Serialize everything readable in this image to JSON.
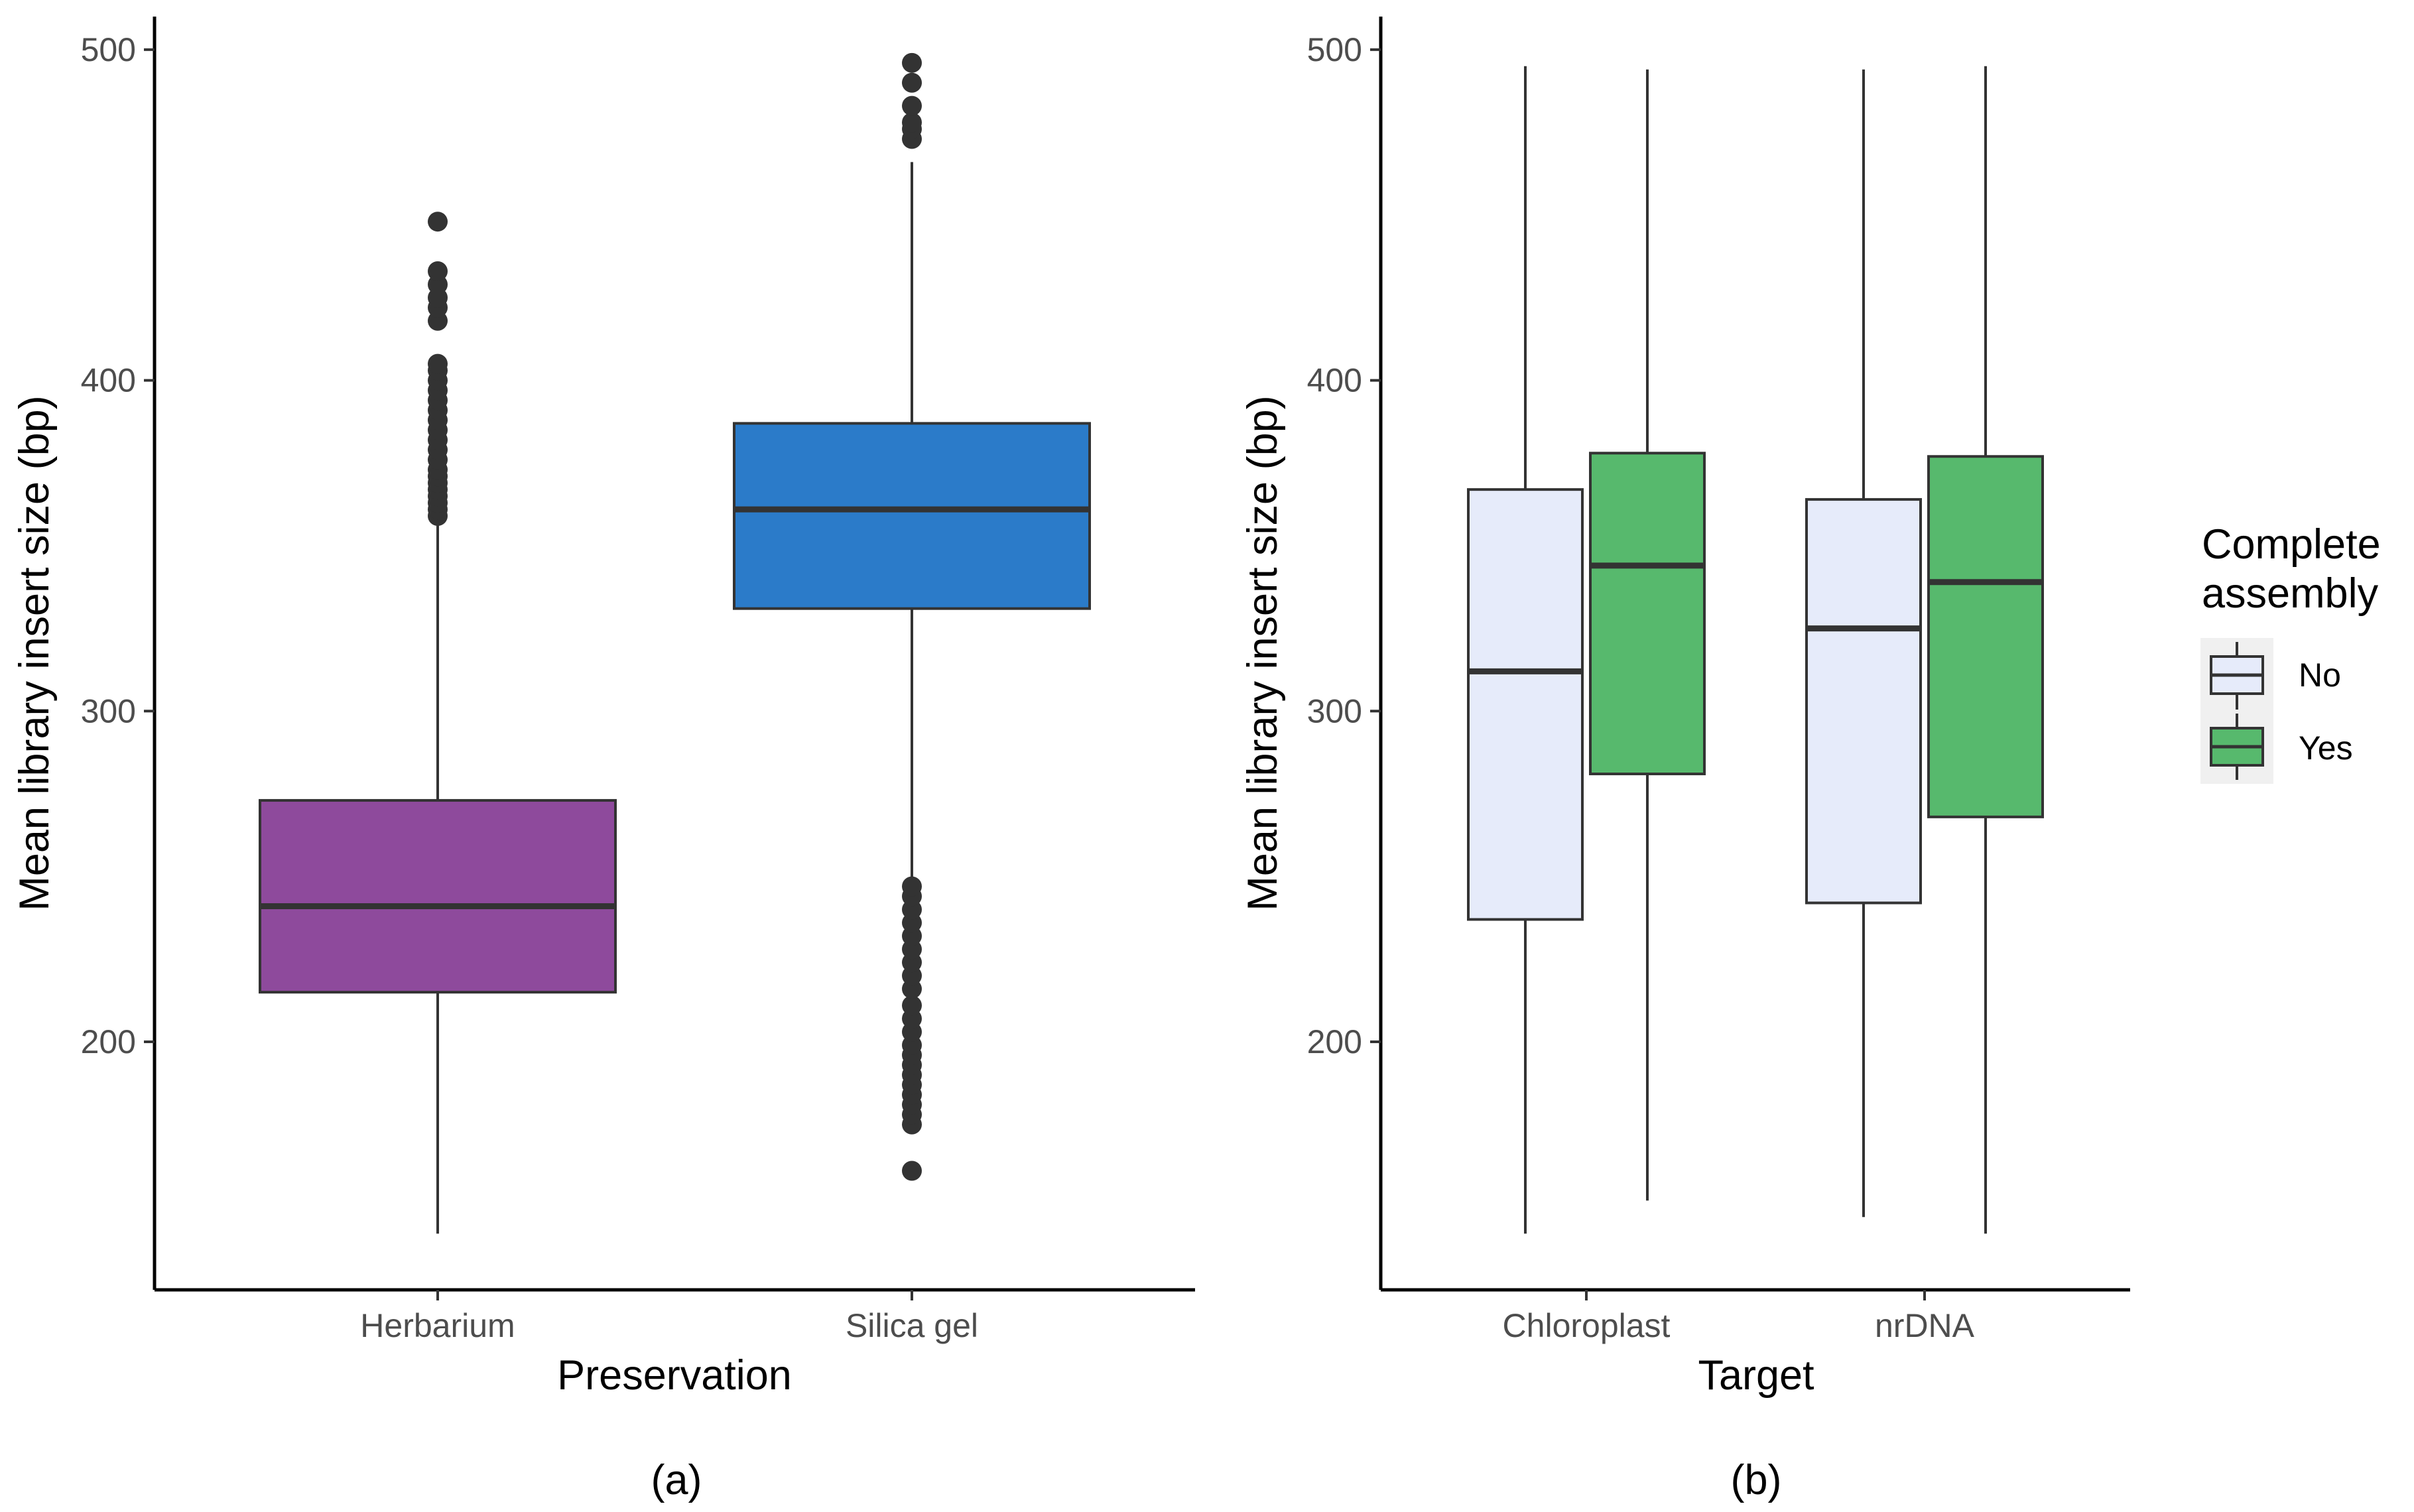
{
  "chart_data": [
    {
      "type": "boxplot",
      "panel_label": "(a)",
      "xlabel": "Preservation",
      "ylabel": "Mean library insert size (bp)",
      "ylim": [
        125,
        510
      ],
      "yticks": [
        200,
        300,
        400,
        500
      ],
      "ytick_labels": [
        "200",
        "300",
        "400",
        "500"
      ],
      "categories": [
        "Herbarium",
        "Silica gel"
      ],
      "colors": [
        "#8e4a9c",
        "#2b7bc9"
      ],
      "boxes": [
        {
          "category": "Herbarium",
          "whisker_low": 142,
          "q1": 215,
          "median": 241,
          "q3": 273,
          "whisker_high": 357,
          "outliers": [
            359,
            361,
            363,
            365,
            367,
            369,
            371,
            373,
            376,
            379,
            382,
            385,
            388,
            391,
            394,
            397,
            400,
            403,
            405,
            418,
            422,
            425,
            429,
            433,
            448
          ]
        },
        {
          "category": "Silica gel",
          "whisker_low": 248,
          "q1": 331,
          "median": 361,
          "q3": 387,
          "whisker_high": 466,
          "outliers": [
            161,
            175,
            178,
            181,
            184,
            187,
            190,
            193,
            196,
            199,
            203,
            207,
            211,
            216,
            220,
            224,
            228,
            232,
            236,
            240,
            244,
            247,
            473,
            476,
            478,
            483,
            490,
            496
          ]
        }
      ]
    },
    {
      "type": "boxplot",
      "panel_label": "(b)",
      "xlabel": "Target",
      "ylabel": "Mean library insert size (bp)",
      "ylim": [
        125,
        510
      ],
      "yticks": [
        200,
        300,
        400,
        500
      ],
      "ytick_labels": [
        "200",
        "300",
        "400",
        "500"
      ],
      "categories": [
        "Chloroplast",
        "nrDNA"
      ],
      "legend": {
        "title_lines": [
          "Complete",
          "assembly"
        ],
        "entries": [
          {
            "label": "No",
            "color": "#e6ebfa"
          },
          {
            "label": "Yes",
            "color": "#57b96d"
          }
        ],
        "position": "right"
      },
      "series": [
        {
          "name": "No",
          "color": "#e6ebfa",
          "boxes": [
            {
              "category": "Chloroplast",
              "whisker_low": 142,
              "q1": 237,
              "median": 312,
              "q3": 367,
              "whisker_high": 495
            },
            {
              "category": "nrDNA",
              "whisker_low": 147,
              "q1": 242,
              "median": 325,
              "q3": 364,
              "whisker_high": 494
            }
          ]
        },
        {
          "name": "Yes",
          "color": "#57b96d",
          "boxes": [
            {
              "category": "Chloroplast",
              "whisker_low": 152,
              "q1": 281,
              "median": 344,
              "q3": 378,
              "whisker_high": 494
            },
            {
              "category": "nrDNA",
              "whisker_low": 142,
              "q1": 268,
              "median": 339,
              "q3": 377,
              "whisker_high": 495
            }
          ]
        }
      ]
    }
  ]
}
